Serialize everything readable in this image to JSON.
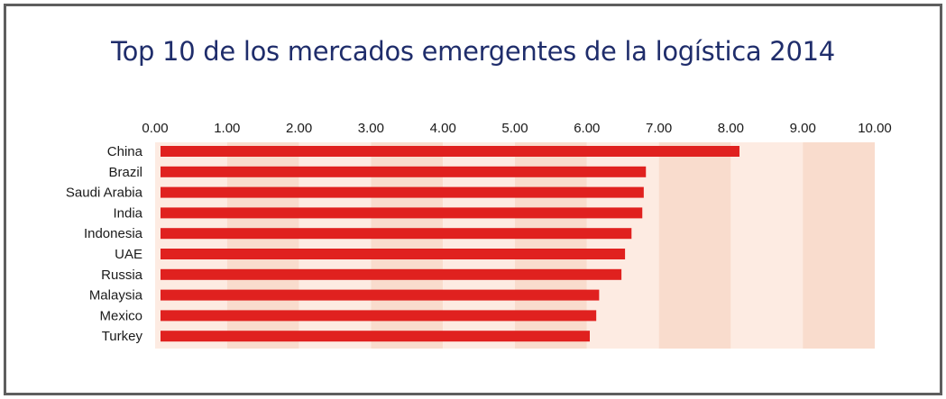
{
  "chart_data": {
    "type": "bar",
    "orientation": "horizontal",
    "title": "Top 10 de los mercados emergentes de la logística 2014",
    "xlabel": "",
    "ylabel": "",
    "xlim": [
      0,
      10
    ],
    "x_ticks": [
      "0.00",
      "1.00",
      "2.00",
      "3.00",
      "4.00",
      "5.00",
      "6.00",
      "7.00",
      "8.00",
      "9.00",
      "10.00"
    ],
    "x_axis_position": "top",
    "grid": "alternating background bands",
    "categories": [
      "China",
      "Brazil",
      "Saudi Arabia",
      "India",
      "Indonesia",
      "UAE",
      "Russia",
      "Malaysia",
      "Mexico",
      "Turkey"
    ],
    "values": [
      8.12,
      6.82,
      6.79,
      6.77,
      6.62,
      6.53,
      6.48,
      6.17,
      6.13,
      6.04
    ],
    "colors": {
      "bar": "#e0211f",
      "band_light": "#fdebe2",
      "band_dark": "#f9dccd",
      "title": "#1f2d6b"
    }
  }
}
